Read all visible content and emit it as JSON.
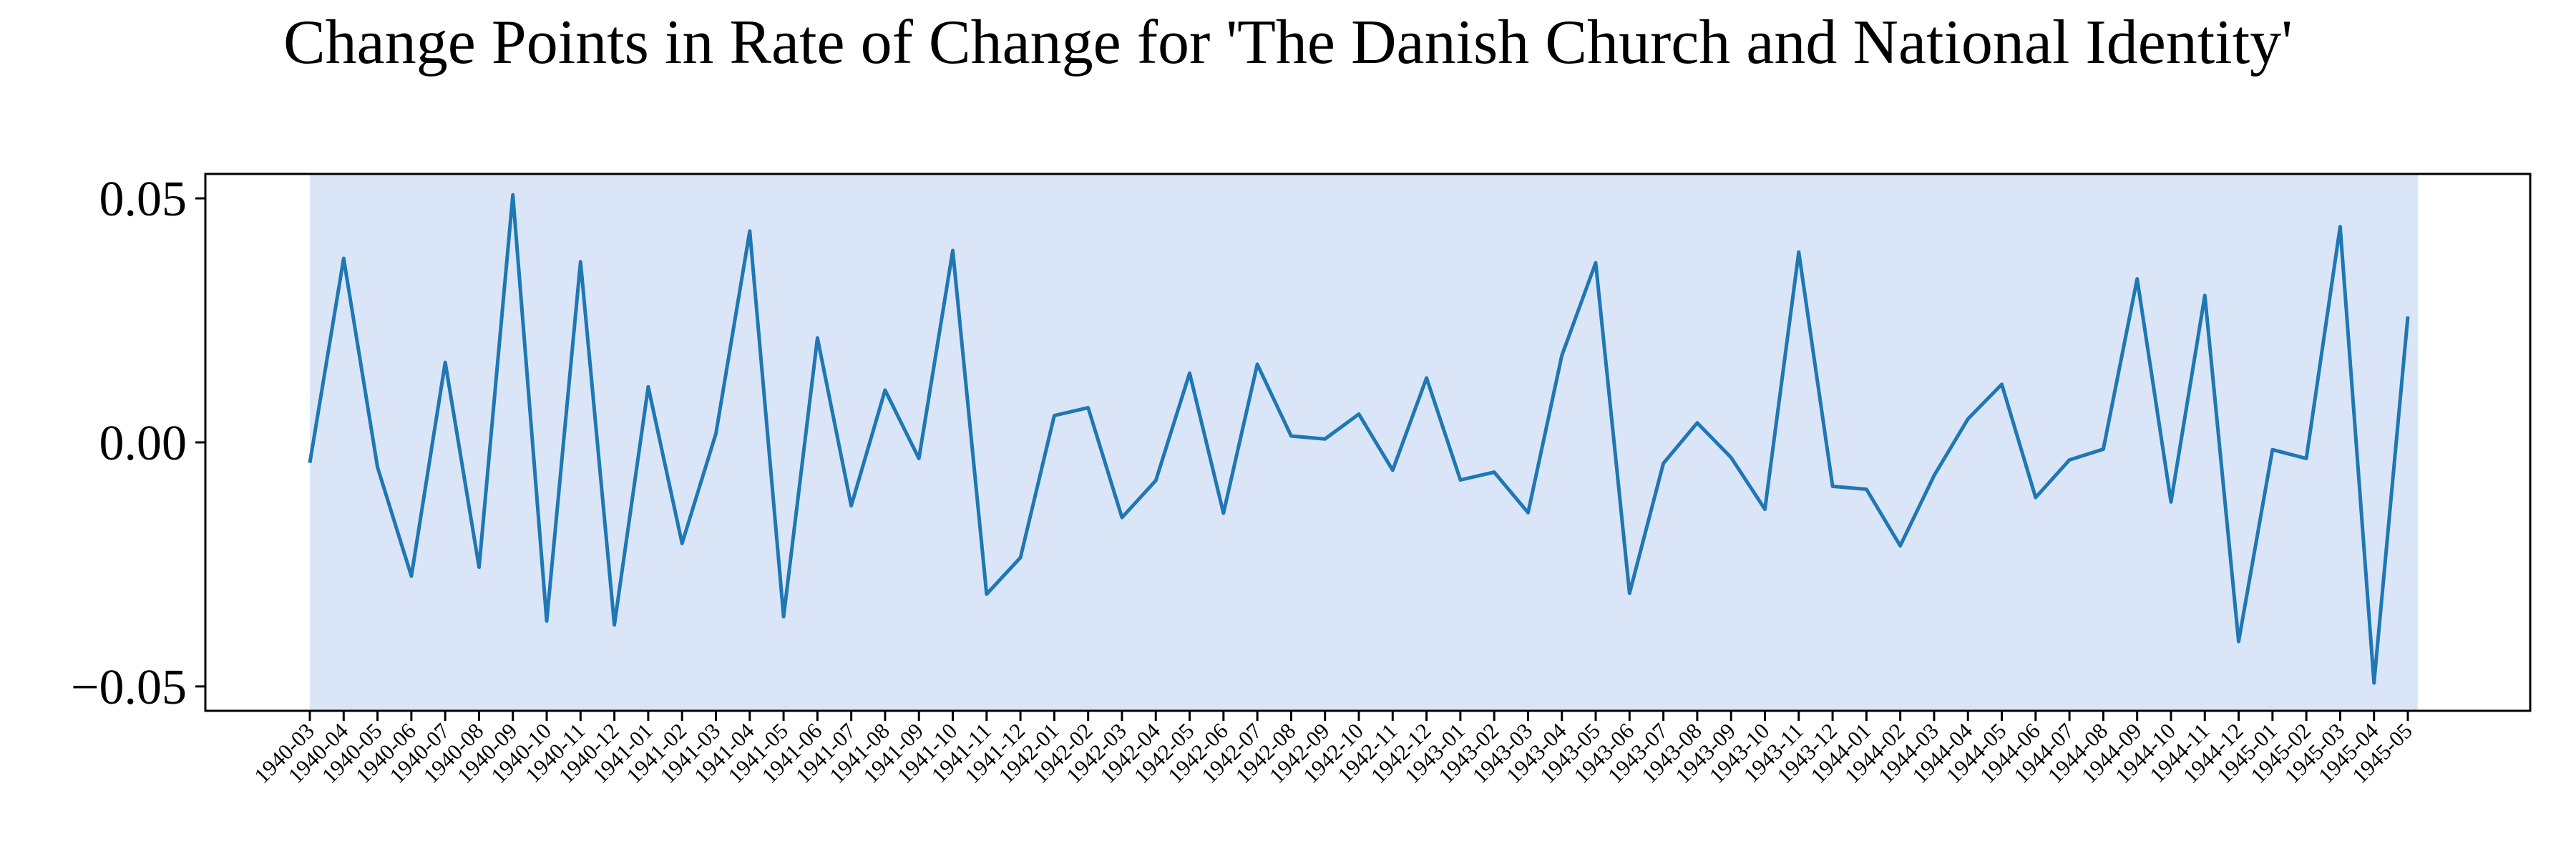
{
  "chart_data": {
    "type": "line",
    "title": "Change Points in Rate of Change for 'The Danish Church and National Identity'",
    "xlabel": "",
    "ylabel": "",
    "ylim": [
      -0.055,
      0.055
    ],
    "y_ticks": [
      -0.05,
      0.0,
      0.05
    ],
    "y_tick_labels": [
      "−0.05",
      "0.00",
      "0.05"
    ],
    "grid": false,
    "legend": "none",
    "colors": {
      "line": "#1f77b4",
      "span": "#dae6f8",
      "axes": "#000000"
    },
    "highlight_span": {
      "from": "1940-03",
      "to": "1945-05"
    },
    "x": [
      "1940-03",
      "1940-04",
      "1940-05",
      "1940-06",
      "1940-07",
      "1940-08",
      "1940-09",
      "1940-10",
      "1940-11",
      "1940-12",
      "1941-01",
      "1941-02",
      "1941-03",
      "1941-04",
      "1941-05",
      "1941-06",
      "1941-07",
      "1941-08",
      "1941-09",
      "1941-10",
      "1941-11",
      "1941-12",
      "1942-01",
      "1942-02",
      "1942-03",
      "1942-04",
      "1942-05",
      "1942-06",
      "1942-07",
      "1942-08",
      "1942-09",
      "1942-10",
      "1942-11",
      "1942-12",
      "1943-01",
      "1943-02",
      "1943-03",
      "1943-04",
      "1943-05",
      "1943-06",
      "1943-07",
      "1943-08",
      "1943-09",
      "1943-10",
      "1943-11",
      "1943-12",
      "1944-01",
      "1944-02",
      "1944-03",
      "1944-04",
      "1944-05",
      "1944-06",
      "1944-07",
      "1944-08",
      "1944-09",
      "1944-10",
      "1944-11",
      "1944-12",
      "1945-01",
      "1945-02",
      "1945-03",
      "1945-04",
      "1945-05"
    ],
    "values": [
      -0.0042,
      0.0377,
      -0.0051,
      -0.0274,
      0.0164,
      -0.0256,
      0.0507,
      -0.0366,
      0.037,
      -0.0374,
      0.0114,
      -0.0207,
      0.0018,
      0.0433,
      -0.0357,
      0.0214,
      -0.013,
      0.0107,
      -0.0033,
      0.0393,
      -0.0311,
      -0.0236,
      0.0055,
      0.0071,
      -0.0154,
      -0.0078,
      0.0142,
      -0.0145,
      0.016,
      0.0013,
      0.0007,
      0.0058,
      -0.0057,
      0.0132,
      -0.0077,
      -0.0061,
      -0.0144,
      0.0178,
      0.0368,
      -0.0309,
      -0.0043,
      0.004,
      -0.0031,
      -0.0137,
      0.039,
      -0.009,
      -0.0096,
      -0.0212,
      -0.0068,
      0.0048,
      0.0119,
      -0.0113,
      -0.0036,
      -0.0014,
      0.0335,
      -0.0122,
      0.0301,
      -0.0408,
      -0.0015,
      -0.0033,
      0.0442,
      -0.0493,
      0.0258
    ]
  }
}
